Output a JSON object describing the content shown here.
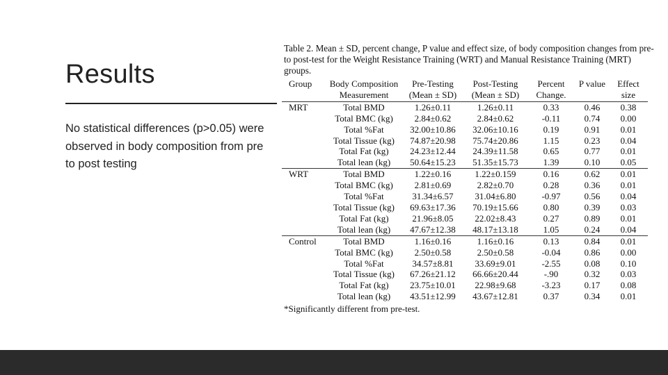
{
  "slide": {
    "title": "Results",
    "body": "No statistical differences (p>0.05) were observed in body composition from pre to post testing"
  },
  "table": {
    "caption": "Table 2. Mean ± SD, percent change, P value and effect size, of body composition changes from pre- to post-test for the Weight Resistance Training (WRT) and Manual Resistance Training (MRT) groups.",
    "headers": [
      "Group",
      "Body Composition Measurement",
      "Pre-Testing (Mean ± SD)",
      "Post-Testing (Mean ± SD)",
      "Percent Change.",
      "P value",
      "Effect size"
    ],
    "groups": [
      {
        "name": "MRT",
        "rows": [
          {
            "measure": "Total BMD",
            "pre": "1.26±0.11",
            "post": "1.26±0.11",
            "pct": "0.33",
            "p": "0.46",
            "es": "0.38"
          },
          {
            "measure": "Total BMC (kg)",
            "pre": "2.84±0.62",
            "post": "2.84±0.62",
            "pct": "-0.11",
            "p": "0.74",
            "es": "0.00"
          },
          {
            "measure": "Total %Fat",
            "pre": "32.00±10.86",
            "post": "32.06±10.16",
            "pct": "0.19",
            "p": "0.91",
            "es": "0.01"
          },
          {
            "measure": "Total Tissue (kg)",
            "pre": "74.87±20.98",
            "post": "75.74±20.86",
            "pct": "1.15",
            "p": "0.23",
            "es": "0.04"
          },
          {
            "measure": "Total Fat (kg)",
            "pre": "24.23±12.44",
            "post": "24.39±11.58",
            "pct": "0.65",
            "p": "0.77",
            "es": "0.01"
          },
          {
            "measure": "Total lean (kg)",
            "pre": "50.64±15.23",
            "post": "51.35±15.73",
            "pct": "1.39",
            "p": "0.10",
            "es": "0.05"
          }
        ]
      },
      {
        "name": "WRT",
        "rows": [
          {
            "measure": "Total BMD",
            "pre": "1.22±0.16",
            "post": "1.22±0.159",
            "pct": "0.16",
            "p": "0.62",
            "es": "0.01"
          },
          {
            "measure": "Total BMC (kg)",
            "pre": "2.81±0.69",
            "post": "2.82±0.70",
            "pct": "0.28",
            "p": "0.36",
            "es": "0.01"
          },
          {
            "measure": "Total %Fat",
            "pre": "31.34±6.57",
            "post": "31.04±6.80",
            "pct": "-0.97",
            "p": "0.56",
            "es": "0.04"
          },
          {
            "measure": "Total Tissue (kg)",
            "pre": "69.63±17.36",
            "post": "70.19±15.66",
            "pct": "0.80",
            "p": "0.39",
            "es": "0.03"
          },
          {
            "measure": "Total Fat (kg)",
            "pre": "21.96±8.05",
            "post": "22.02±8.43",
            "pct": "0.27",
            "p": "0.89",
            "es": "0.01"
          },
          {
            "measure": "Total lean (kg)",
            "pre": "47.67±12.38",
            "post": "48.17±13.18",
            "pct": "1.05",
            "p": "0.24",
            "es": "0.04"
          }
        ]
      },
      {
        "name": "Control",
        "rows": [
          {
            "measure": "Total BMD",
            "pre": "1.16±0.16",
            "post": "1.16±0.16",
            "pct": "0.13",
            "p": "0.84",
            "es": "0.01"
          },
          {
            "measure": "Total BMC (kg)",
            "pre": "2.50±0.58",
            "post": "2.50±0.58",
            "pct": "-0.04",
            "p": "0.86",
            "es": "0.00"
          },
          {
            "measure": "Total %Fat",
            "pre": "34.57±8.81",
            "post": "33.69±9.01",
            "pct": "-2.55",
            "p": "0.08",
            "es": "0.10"
          },
          {
            "measure": "Total Tissue (kg)",
            "pre": "67.26±21.12",
            "post": "66.66±20.44",
            "pct": "-.90",
            "p": "0.32",
            "es": "0.03"
          },
          {
            "measure": "Total Fat (kg)",
            "pre": "23.75±10.01",
            "post": "22.98±9.68",
            "pct": "-3.23",
            "p": "0.17",
            "es": "0.08"
          },
          {
            "measure": "Total lean (kg)",
            "pre": "43.51±12.99",
            "post": "43.67±12.81",
            "pct": "0.37",
            "p": "0.34",
            "es": "0.01"
          }
        ]
      }
    ],
    "footnote": "*Significantly different from pre-test."
  },
  "colors": {
    "background": "#ffffff",
    "text": "#222222",
    "footer_bar": "#2b2b2b"
  }
}
